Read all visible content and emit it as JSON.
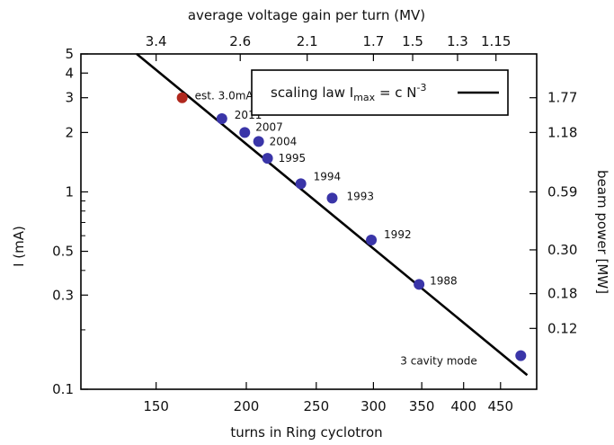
{
  "chart_data": {
    "type": "scatter",
    "xlabel": "turns in Ring cyclotron",
    "ylabel": "I (mA)",
    "x2label": "average voltage gain per turn (MV)",
    "y2label": "beam power [MW]",
    "x_scale": "log",
    "y_scale": "log",
    "xlim": [
      118,
      505
    ],
    "ylim": [
      0.1,
      5
    ],
    "x_ticks": [
      {
        "value": 150,
        "label": "150"
      },
      {
        "value": 200,
        "label": "200"
      },
      {
        "value": 250,
        "label": "250"
      },
      {
        "value": 300,
        "label": "300"
      },
      {
        "value": 350,
        "label": "350"
      },
      {
        "value": 400,
        "label": "400"
      },
      {
        "value": 450,
        "label": "450"
      }
    ],
    "y_ticks": [
      {
        "value": 0.1,
        "label": "0.1"
      },
      {
        "value": 0.3,
        "label": "0.3"
      },
      {
        "value": 0.5,
        "label": "0.5"
      },
      {
        "value": 1,
        "label": "1"
      },
      {
        "value": 2,
        "label": "2"
      },
      {
        "value": 3,
        "label": "3"
      },
      {
        "value": 4,
        "label": "4"
      },
      {
        "value": 5,
        "label": "5"
      }
    ],
    "x2_ticks": [
      {
        "value": 3.4,
        "label": "3.4"
      },
      {
        "value": 2.6,
        "label": "2.6"
      },
      {
        "value": 2.1,
        "label": "2.1"
      },
      {
        "value": 1.7,
        "label": "1.7"
      },
      {
        "value": 1.5,
        "label": "1.5"
      },
      {
        "value": 1.3,
        "label": "1.3"
      },
      {
        "value": 1.15,
        "label": "1.15"
      }
    ],
    "y2_ticks": [
      {
        "value": 0.12,
        "label": "0.12"
      },
      {
        "value": 0.18,
        "label": "0.18"
      },
      {
        "value": 0.3,
        "label": "0.30"
      },
      {
        "value": 0.59,
        "label": "0.59"
      },
      {
        "value": 1.18,
        "label": "1.18"
      },
      {
        "value": 1.77,
        "label": "1.77"
      }
    ],
    "points": [
      {
        "x": 163,
        "y": 3.0,
        "label": "est. 3.0mA",
        "color": "#b0281e"
      },
      {
        "x": 185,
        "y": 2.35,
        "label": "2011",
        "color": "#3a35a8"
      },
      {
        "x": 199,
        "y": 2.0,
        "label": "2007",
        "color": "#3a35a8"
      },
      {
        "x": 208,
        "y": 1.8,
        "label": "2004",
        "color": "#3a35a8"
      },
      {
        "x": 214,
        "y": 1.48,
        "label": "1995",
        "color": "#3a35a8"
      },
      {
        "x": 238,
        "y": 1.1,
        "label": "1994",
        "color": "#3a35a8"
      },
      {
        "x": 263,
        "y": 0.93,
        "label": "1993",
        "color": "#3a35a8"
      },
      {
        "x": 298,
        "y": 0.57,
        "label": "1992",
        "color": "#3a35a8"
      },
      {
        "x": 347,
        "y": 0.34,
        "label": "1988",
        "color": "#3a35a8"
      },
      {
        "x": 480,
        "y": 0.148,
        "label": "3 cavity mode",
        "color": "#3a35a8"
      }
    ],
    "fit_line": {
      "name": "scaling law Imax = c N-3",
      "x": [
        141,
        490
      ],
      "y": [
        5.0,
        0.118
      ],
      "color": "#000000"
    },
    "legend_position": "top-right",
    "grid": false
  }
}
